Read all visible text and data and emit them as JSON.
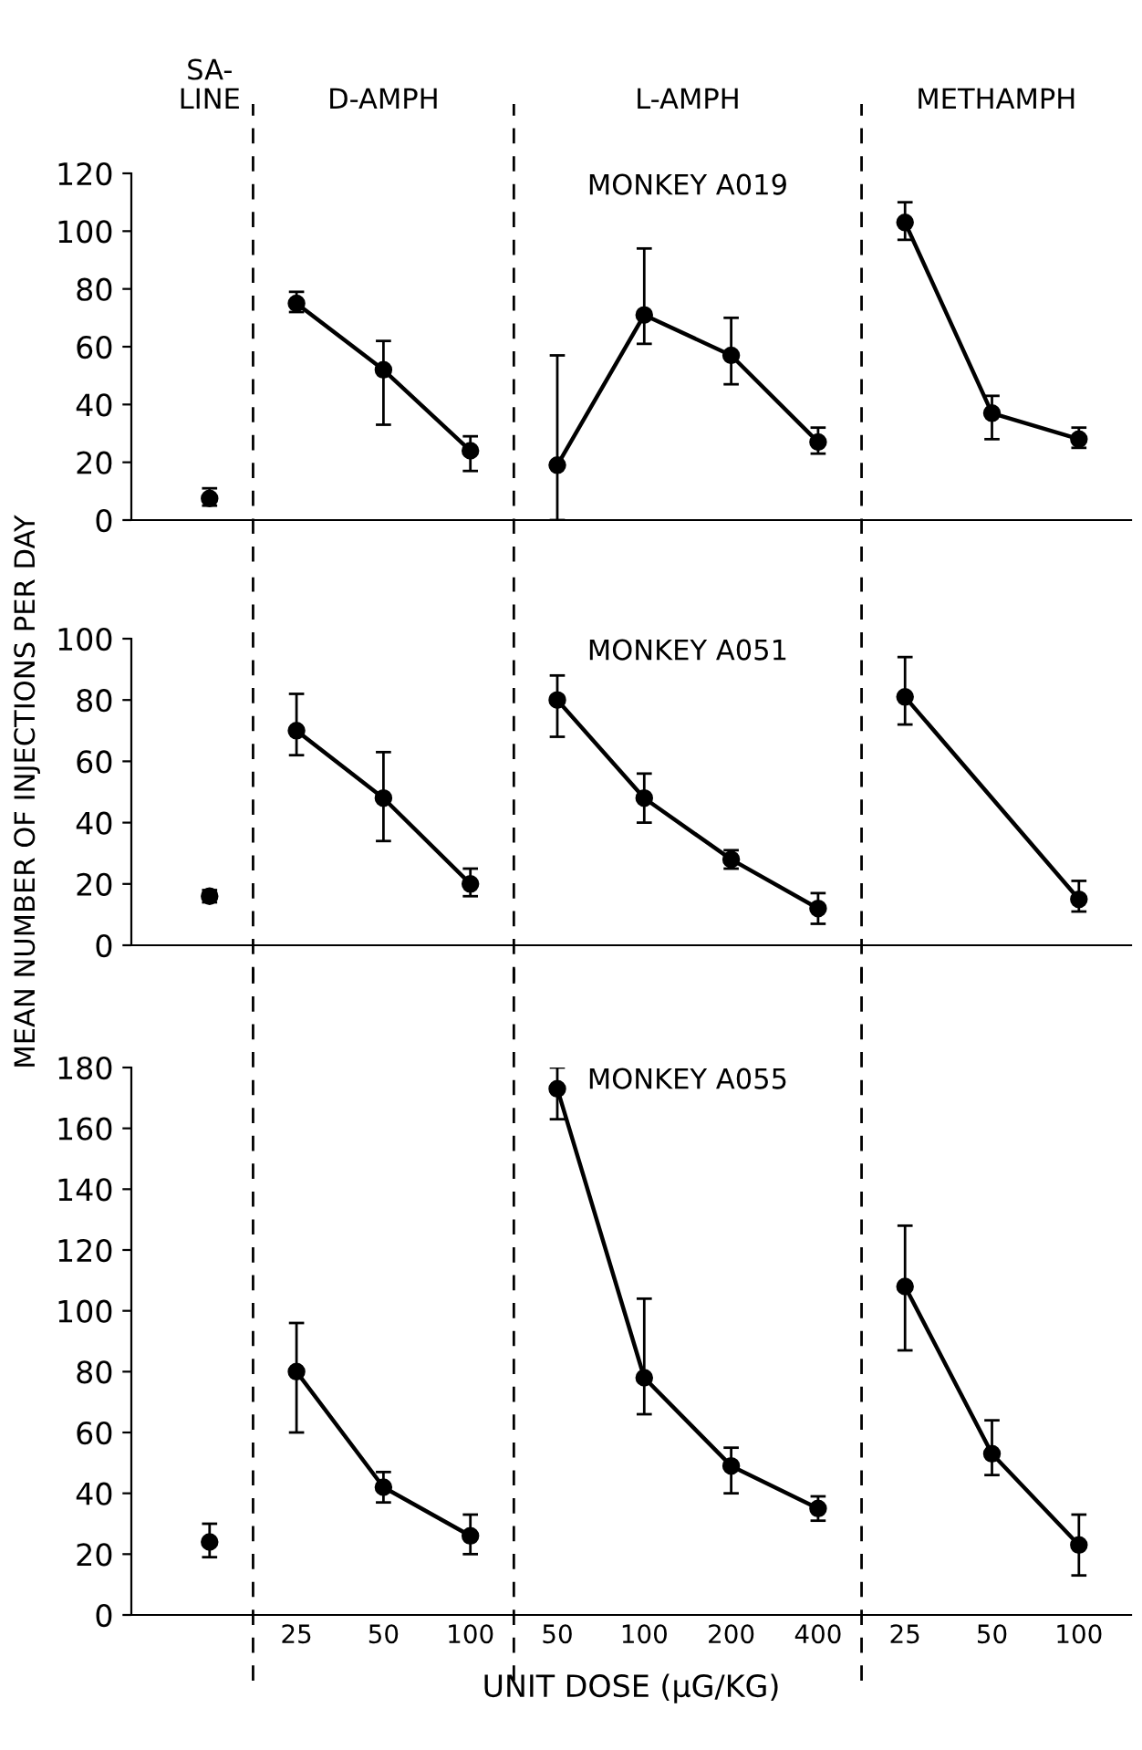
{
  "chart_data": [
    {
      "type": "line",
      "categories": [
        null,
        "25",
        "50",
        "100",
        "50",
        "100",
        "200",
        "400",
        "25",
        "50",
        "100"
      ],
      "tick_labels": "y",
      "ylim": [
        0,
        120
      ],
      "yticks": [
        0,
        20,
        40,
        60,
        80,
        100,
        120
      ],
      "grid": false,
      "legend": false,
      "marker": "circle",
      "line_style": "solid",
      "annotations": [
        "SA-\nLINE",
        "D-AMPH",
        "L-AMPH",
        "METHAMPH",
        "MONKEY A019"
      ],
      "series": [
        {
          "color": "#000000",
          "values": [
            7.5,
            null,
            null,
            null,
            null,
            null,
            null,
            null,
            null,
            null,
            null
          ],
          "errors": [
            [
              5,
              11
            ],
            null,
            null,
            null,
            null,
            null,
            null,
            null,
            null,
            null,
            null
          ]
        },
        {
          "color": "#000000",
          "values": [
            null,
            75,
            52,
            24,
            null,
            null,
            null,
            null,
            null,
            null,
            null
          ],
          "errors": [
            null,
            [
              72,
              79
            ],
            [
              33,
              62
            ],
            [
              17,
              29
            ],
            null,
            null,
            null,
            null,
            null,
            null,
            null
          ]
        },
        {
          "color": "#000000",
          "values": [
            null,
            null,
            null,
            null,
            19,
            71,
            57,
            27,
            null,
            null,
            null
          ],
          "errors": [
            null,
            null,
            null,
            null,
            [
              0,
              57
            ],
            [
              61,
              94
            ],
            [
              47,
              70
            ],
            [
              23,
              32
            ],
            null,
            null,
            null
          ]
        },
        {
          "color": "#000000",
          "values": [
            null,
            null,
            null,
            null,
            null,
            null,
            null,
            null,
            103,
            37,
            28
          ],
          "errors": [
            null,
            null,
            null,
            null,
            null,
            null,
            null,
            null,
            [
              97,
              110
            ],
            [
              28,
              43
            ],
            [
              25,
              32
            ]
          ]
        }
      ]
    },
    {
      "type": "line",
      "categories": [
        null,
        "25",
        "50",
        "100",
        "50",
        "100",
        "200",
        "400",
        "25",
        "50",
        "100"
      ],
      "tick_labels": "y",
      "ylim": [
        0,
        100
      ],
      "yticks": [
        0,
        20,
        40,
        60,
        80,
        100
      ],
      "grid": false,
      "legend": false,
      "marker": "circle",
      "line_style": "solid",
      "ylabel": "MEAN NUMBER OF INJECTIONS PER DAY",
      "annotations": [
        "MONKEY A051"
      ],
      "series": [
        {
          "color": "#000000",
          "values": [
            16,
            null,
            null,
            null,
            null,
            null,
            null,
            null,
            null,
            null,
            null
          ],
          "errors": [
            [
              14,
              18
            ],
            null,
            null,
            null,
            null,
            null,
            null,
            null,
            null,
            null,
            null
          ]
        },
        {
          "color": "#000000",
          "values": [
            null,
            70,
            48,
            20,
            null,
            null,
            null,
            null,
            null,
            null,
            null
          ],
          "errors": [
            null,
            [
              62,
              82
            ],
            [
              34,
              63
            ],
            [
              16,
              25
            ],
            null,
            null,
            null,
            null,
            null,
            null,
            null
          ]
        },
        {
          "color": "#000000",
          "values": [
            null,
            null,
            null,
            null,
            80,
            48,
            28,
            12,
            null,
            null,
            null
          ],
          "errors": [
            null,
            null,
            null,
            null,
            [
              68,
              88
            ],
            [
              40,
              56
            ],
            [
              25,
              31
            ],
            [
              7,
              17
            ],
            null,
            null,
            null
          ]
        },
        {
          "color": "#000000",
          "values": [
            null,
            null,
            null,
            null,
            null,
            null,
            null,
            null,
            81,
            null,
            15
          ],
          "errors": [
            null,
            null,
            null,
            null,
            null,
            null,
            null,
            null,
            [
              72,
              94
            ],
            null,
            [
              11,
              21
            ]
          ]
        }
      ]
    },
    {
      "type": "line",
      "categories": [
        null,
        "25",
        "50",
        "100",
        "50",
        "100",
        "200",
        "400",
        "25",
        "50",
        "100"
      ],
      "ylim": [
        0,
        180
      ],
      "yticks": [
        0,
        20,
        40,
        60,
        80,
        100,
        120,
        140,
        160,
        180
      ],
      "grid": false,
      "legend": false,
      "marker": "circle",
      "line_style": "solid",
      "xlabel": "UNIT DOSE (μG/KG)",
      "annotations": [
        "MONKEY A055"
      ],
      "series": [
        {
          "color": "#000000",
          "values": [
            24,
            null,
            null,
            null,
            null,
            null,
            null,
            null,
            null,
            null,
            null
          ],
          "errors": [
            [
              19,
              30
            ],
            null,
            null,
            null,
            null,
            null,
            null,
            null,
            null,
            null,
            null
          ]
        },
        {
          "color": "#000000",
          "values": [
            null,
            80,
            42,
            26,
            null,
            null,
            null,
            null,
            null,
            null,
            null
          ],
          "errors": [
            null,
            [
              60,
              96
            ],
            [
              37,
              47
            ],
            [
              20,
              33
            ],
            null,
            null,
            null,
            null,
            null,
            null,
            null
          ]
        },
        {
          "color": "#000000",
          "values": [
            null,
            null,
            null,
            null,
            173,
            78,
            49,
            35,
            null,
            null,
            null
          ],
          "errors": [
            null,
            null,
            null,
            null,
            [
              163,
              180
            ],
            [
              66,
              104
            ],
            [
              40,
              55
            ],
            [
              31,
              39
            ],
            null,
            null,
            null
          ]
        },
        {
          "color": "#000000",
          "values": [
            null,
            null,
            null,
            null,
            null,
            null,
            null,
            null,
            108,
            53,
            23
          ],
          "errors": [
            null,
            null,
            null,
            null,
            null,
            null,
            null,
            null,
            [
              87,
              128
            ],
            [
              46,
              64
            ],
            [
              13,
              33
            ]
          ]
        }
      ]
    }
  ]
}
